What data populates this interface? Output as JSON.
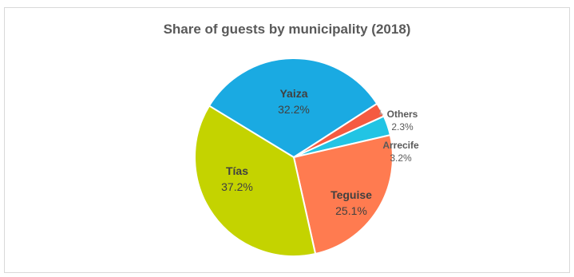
{
  "chart_data": {
    "type": "pie",
    "title": "Share of guests by municipality (2018)",
    "slices": [
      {
        "label": "Yaiza",
        "value": 32.2,
        "value_label": "32.2%",
        "color": "#1aaae2"
      },
      {
        "label": "Others",
        "value": 2.3,
        "value_label": "2.3%",
        "color": "#f55a40"
      },
      {
        "label": "Arrecife",
        "value": 3.2,
        "value_label": "3.2%",
        "color": "#22c4e4"
      },
      {
        "label": "Teguise",
        "value": 25.1,
        "value_label": "25.1%",
        "color": "#ff7b50"
      },
      {
        "label": "Tías",
        "value": 37.2,
        "value_label": "37.2%",
        "color": "#c4d300"
      }
    ]
  }
}
